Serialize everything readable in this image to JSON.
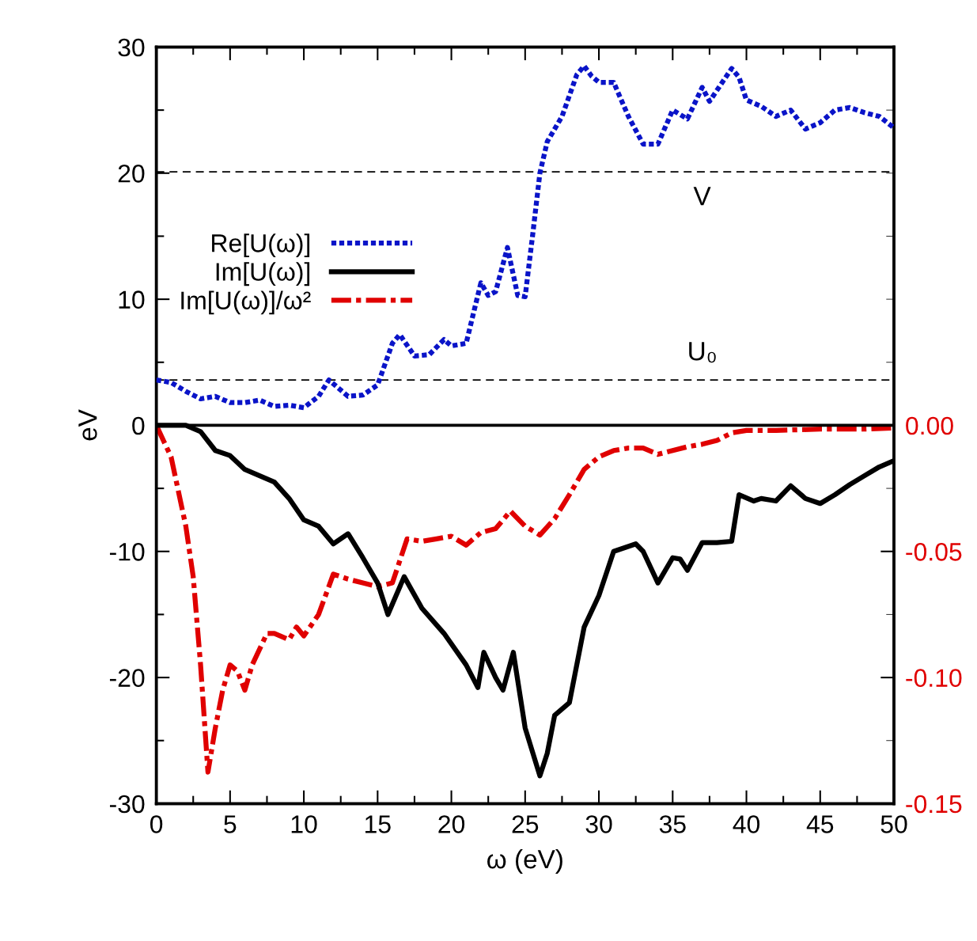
{
  "chart_data": {
    "type": "line",
    "xlabel": "ω (eV)",
    "ylabel": "eV",
    "xlim": [
      0,
      50
    ],
    "xticks": [
      0,
      5,
      10,
      15,
      20,
      25,
      30,
      35,
      40,
      45,
      50
    ],
    "ylim": [
      -30,
      30
    ],
    "yticks": [
      -30,
      -20,
      -10,
      0,
      10,
      20,
      30
    ],
    "y2lim": [
      -0.15,
      0.15
    ],
    "y2ticks": [
      {
        "value": 0,
        "label": "0.00"
      },
      {
        "value": -0.05,
        "label": "-0.05"
      },
      {
        "value": -0.1,
        "label": "-0.10"
      },
      {
        "value": -0.15,
        "label": "-0.15"
      }
    ],
    "legend": "left",
    "grid": false,
    "series": [
      {
        "name": "Re[U(ω)]",
        "color": "#0a14c8",
        "line_style": "dotted",
        "x": [
          0,
          1,
          2,
          3,
          4,
          5,
          6,
          7,
          8,
          9,
          10,
          11,
          11.7,
          13,
          14,
          15,
          16,
          16.5,
          17.5,
          18.5,
          19.5,
          20,
          21,
          22,
          22.5,
          23,
          23.8,
          24.5,
          25,
          25.5,
          26,
          26.5,
          27.5,
          28.5,
          29,
          29.5,
          30,
          31,
          32,
          33,
          34,
          35,
          36,
          37,
          37.5,
          39,
          39.5,
          40,
          41,
          42,
          43,
          44,
          45,
          46,
          47,
          48,
          49,
          50
        ],
        "values": [
          3.6,
          3.4,
          2.7,
          2.1,
          2.3,
          1.8,
          1.8,
          2.0,
          1.5,
          1.6,
          1.4,
          2.3,
          3.6,
          2.3,
          2.4,
          3.2,
          6.5,
          7.2,
          5.5,
          5.6,
          6.8,
          6.3,
          6.5,
          11.3,
          10.3,
          10.6,
          14.1,
          10.3,
          10.2,
          15,
          20,
          22.5,
          24.5,
          27.8,
          28.5,
          27.7,
          27.2,
          27.2,
          24.5,
          22.3,
          22.3,
          25,
          24.3,
          26.8,
          25.7,
          28.3,
          27.6,
          25.8,
          25.3,
          24.5,
          25,
          23.5,
          24,
          25,
          25.2,
          24.8,
          24.5,
          23.6
        ]
      },
      {
        "name": "Im[U(ω)]",
        "color": "#000000",
        "line_style": "solid",
        "x": [
          0,
          2,
          3,
          4,
          5,
          6,
          7,
          8,
          9,
          10,
          11,
          12,
          13,
          14,
          15,
          15.7,
          16.8,
          18,
          19.5,
          21,
          21.8,
          22.2,
          23,
          23.5,
          24.2,
          25,
          26,
          26.5,
          27,
          28,
          29,
          30,
          31,
          32.5,
          33,
          34,
          35,
          35.5,
          36,
          37,
          38,
          39,
          39.5,
          40.5,
          41,
          42,
          43,
          44,
          45,
          46,
          47,
          48,
          49,
          50
        ],
        "values": [
          0,
          0,
          -0.5,
          -2,
          -2.4,
          -3.5,
          -4,
          -4.5,
          -5.8,
          -7.5,
          -8,
          -9.4,
          -8.6,
          -10.5,
          -12.5,
          -15,
          -12,
          -14.5,
          -16.5,
          -19,
          -20.8,
          -18,
          -20,
          -21,
          -18,
          -24,
          -27.8,
          -26,
          -23,
          -22,
          -16,
          -13.5,
          -10,
          -9.4,
          -10,
          -12.5,
          -10.5,
          -10.6,
          -11.5,
          -9.3,
          -9.3,
          -9.2,
          -5.5,
          -6,
          -5.8,
          -6,
          -4.8,
          -5.8,
          -6.2,
          -5.5,
          -4.7,
          -4,
          -3.3,
          -2.8
        ]
      },
      {
        "name": "Im[U(ω)]/ω²",
        "color": "#e00000",
        "line_style": "dashdot",
        "axis": "y2",
        "x": [
          0,
          1,
          2,
          2.5,
          3,
          3.5,
          4,
          4.5,
          5,
          5.5,
          6,
          6.5,
          7.5,
          8,
          9,
          9.5,
          10,
          11,
          12,
          13,
          14,
          15,
          16,
          17,
          18,
          19,
          20,
          21,
          22,
          23,
          24,
          25,
          26,
          27,
          28,
          29,
          30,
          31,
          32,
          33,
          34,
          35,
          36,
          37,
          38,
          39,
          40,
          42,
          45,
          48,
          50
        ],
        "values": [
          0,
          -0.0125,
          -0.04,
          -0.06,
          -0.095,
          -0.1375,
          -0.12,
          -0.105,
          -0.095,
          -0.0975,
          -0.105,
          -0.095,
          -0.0825,
          -0.0825,
          -0.085,
          -0.08,
          -0.0835,
          -0.075,
          -0.059,
          -0.061,
          -0.0625,
          -0.064,
          -0.0625,
          -0.045,
          -0.046,
          -0.045,
          -0.044,
          -0.0475,
          -0.0425,
          -0.041,
          -0.034,
          -0.04,
          -0.0435,
          -0.037,
          -0.0275,
          -0.0175,
          -0.0125,
          -0.01,
          -0.009,
          -0.009,
          -0.0115,
          -0.01,
          -0.0085,
          -0.0075,
          -0.006,
          -0.003,
          -0.002,
          -0.002,
          -0.0015,
          -0.0015,
          -0.001
        ]
      }
    ],
    "ref_lines": [
      {
        "axis": "y",
        "value": 20.1,
        "label": "V",
        "color": "#000000",
        "line_style": "dashed"
      },
      {
        "axis": "y",
        "value": 3.6,
        "label": "U₀",
        "color": "#000000",
        "line_style": "dashed"
      },
      {
        "axis": "y",
        "value": 0,
        "label": null,
        "color": "#000000",
        "line_style": "solid"
      }
    ]
  }
}
